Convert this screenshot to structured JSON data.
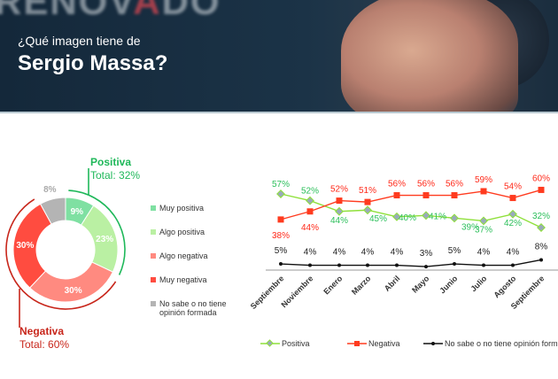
{
  "header": {
    "background_word_a": "RENOV",
    "background_word_b": "A",
    "background_word_c": "DO",
    "question_line1": "¿Qué imagen tiene de",
    "question_line2": "Sergio Massa?"
  },
  "donut": {
    "positive_title": "Positiva",
    "positive_total": "Total: 32%",
    "negative_title": "Negativa",
    "negative_total": "Total: 60%",
    "segments": [
      {
        "label": "Muy positiva",
        "value": 9,
        "display": "9%",
        "color": "#7fe0a2"
      },
      {
        "label": "Algo positiva",
        "value": 23,
        "display": "23%",
        "color": "#baf0a3"
      },
      {
        "label": "Algo negativa",
        "value": 30,
        "display": "30%",
        "color": "#ff8a80"
      },
      {
        "label": "Muy negativa",
        "value": 30,
        "display": "30%",
        "color": "#ff4c40"
      },
      {
        "label": "No sabe o no tiene opinión formada",
        "value": 8,
        "display": "8%",
        "color": "#b4b4b4"
      }
    ],
    "colors": {
      "positive": "#1fb85a",
      "negative": "#c8261b"
    }
  },
  "chart_data": {
    "type": "line",
    "categories": [
      "Septiembre",
      "Noviembre",
      "Enero",
      "Marzo",
      "Abril",
      "Mayo",
      "Junio",
      "Julio",
      "Agosto",
      "Septiembre"
    ],
    "series": [
      {
        "name": "Positiva",
        "values": [
          57,
          52,
          44,
          45,
          40,
          41,
          39,
          37,
          42,
          32
        ],
        "color": "#8fe03a",
        "label_color": "#2bbf5a"
      },
      {
        "name": "Negativa",
        "values": [
          38,
          44,
          52,
          51,
          56,
          56,
          56,
          59,
          54,
          60
        ],
        "color": "#ff3b1f",
        "label_color": "#ff2a1a"
      },
      {
        "name": "No sabe o no tiene opinión formada",
        "values": [
          5,
          4,
          4,
          4,
          4,
          3,
          5,
          4,
          4,
          8
        ],
        "color": "#111111",
        "label_color": "#222222"
      }
    ],
    "ylim": [
      0,
      60
    ],
    "grid": false,
    "legend": "bottom",
    "value_suffix": "%"
  }
}
